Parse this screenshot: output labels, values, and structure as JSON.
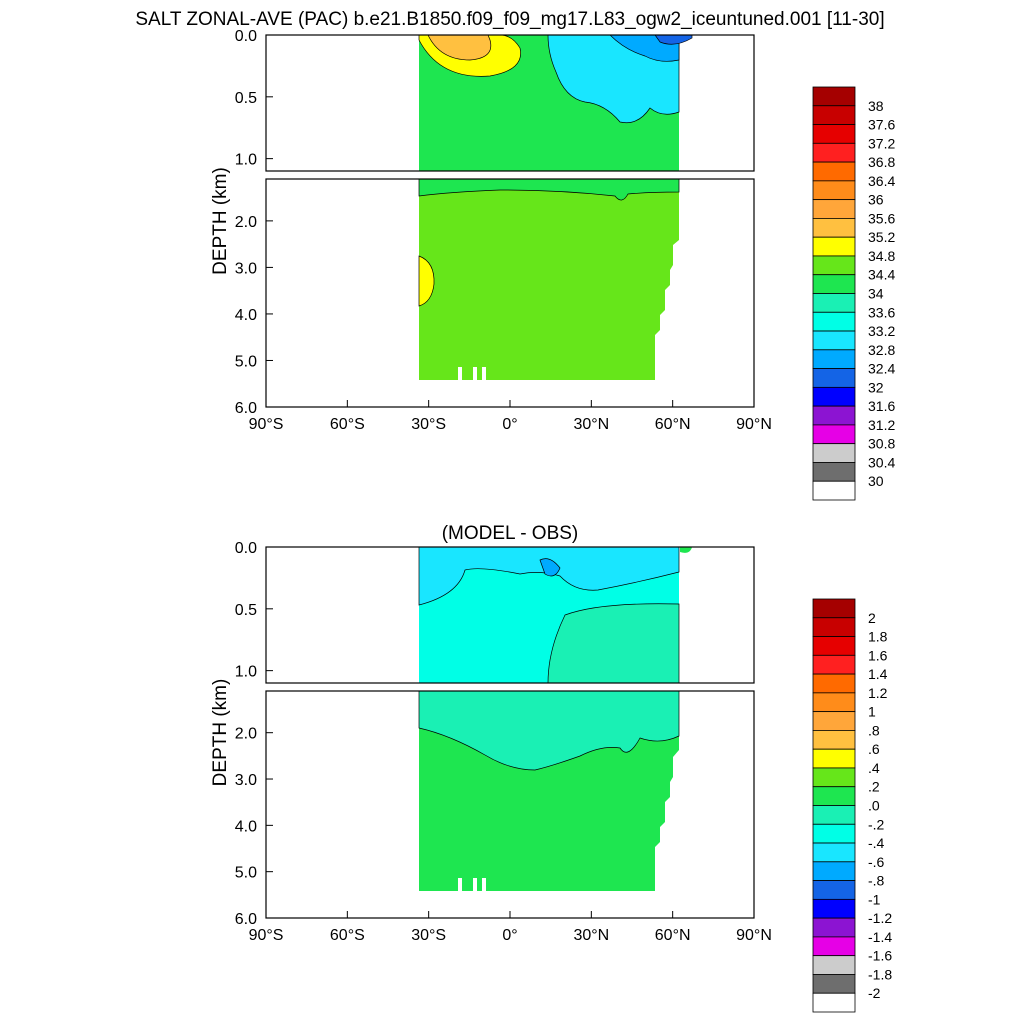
{
  "title": "SALT ZONAL-AVE (PAC) b.e21.B1850.f09_f09_mg17.L83_ogw2_iceuntuned.001 [11-30]",
  "chart_data": [
    {
      "type": "heatmap",
      "title": "",
      "ylabel": "DEPTH (km)",
      "xlabel": "",
      "xlim": [
        -90,
        90
      ],
      "ylim_upper": [
        0,
        1.1
      ],
      "ylim_lower": [
        1.1,
        6
      ],
      "x_ticks": [
        "90°S",
        "60°S",
        "30°S",
        "0°",
        "30°N",
        "60°N",
        "90°N"
      ],
      "y_ticks_upper": [
        "0.0",
        "0.5",
        "1.0"
      ],
      "y_ticks_lower": [
        "2.0",
        "3.0",
        "4.0",
        "5.0",
        "6.0"
      ],
      "data_extent_lat": [
        -34,
        62
      ],
      "colorbar": {
        "labels": [
          "38",
          "37.6",
          "37.2",
          "36.8",
          "36.4",
          "36",
          "35.6",
          "35.2",
          "34.8",
          "34.4",
          "34",
          "33.6",
          "33.2",
          "32.8",
          "32.4",
          "32",
          "31.6",
          "31.2",
          "30.8",
          "30.4",
          "30"
        ],
        "colors": [
          "#a50000",
          "#c80000",
          "#e60000",
          "#ff2020",
          "#ff6a00",
          "#ff8c1a",
          "#ffa63a",
          "#ffc040",
          "#ffff00",
          "#66e61a",
          "#1ee650",
          "#1af0b4",
          "#00ffe6",
          "#19e6ff",
          "#00aaff",
          "#1464e6",
          "#0000ff",
          "#8c14d2",
          "#e600e6",
          "#cccccc",
          "#6e6e6e",
          "#ffffff"
        ]
      }
    },
    {
      "type": "heatmap",
      "title": "(MODEL - OBS)",
      "ylabel": "DEPTH (km)",
      "xlabel": "",
      "xlim": [
        -90,
        90
      ],
      "ylim_upper": [
        0,
        1.1
      ],
      "ylim_lower": [
        1.1,
        6
      ],
      "x_ticks": [
        "90°S",
        "60°S",
        "30°S",
        "0°",
        "30°N",
        "60°N",
        "90°N"
      ],
      "y_ticks_upper": [
        "0.0",
        "0.5",
        "1.0"
      ],
      "y_ticks_lower": [
        "2.0",
        "3.0",
        "4.0",
        "5.0",
        "6.0"
      ],
      "data_extent_lat": [
        -34,
        62
      ],
      "colorbar": {
        "labels": [
          "2",
          "1.8",
          "1.6",
          "1.4",
          "1.2",
          "1",
          ".8",
          ".6",
          ".4",
          ".2",
          ".0",
          "-.2",
          "-.4",
          "-.6",
          "-.8",
          "-1",
          "-1.2",
          "-1.4",
          "-1.6",
          "-1.8",
          "-2"
        ],
        "colors": [
          "#a50000",
          "#c80000",
          "#e60000",
          "#ff2020",
          "#ff6a00",
          "#ff8c1a",
          "#ffa63a",
          "#ffc040",
          "#ffff00",
          "#66e61a",
          "#1ee650",
          "#1af0b4",
          "#00ffe6",
          "#19e6ff",
          "#00aaff",
          "#1464e6",
          "#0000ff",
          "#8c14d2",
          "#e600e6",
          "#cccccc",
          "#6e6e6e",
          "#ffffff"
        ]
      }
    }
  ]
}
